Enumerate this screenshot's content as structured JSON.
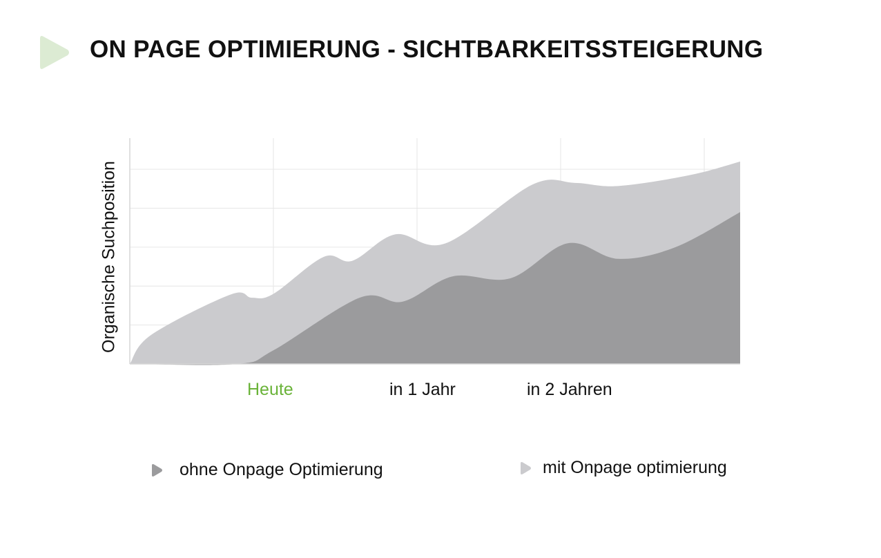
{
  "title": "ON PAGE OPTIMIERUNG - SICHTBARKEITSSTEIGERUNG",
  "colors": {
    "accent_green": "#dcebd3",
    "today_green": "#6ab339",
    "series_mit": "#cbcbce",
    "series_ohne": "#9b9b9d",
    "grid": "#e6e6e6"
  },
  "chart_data": {
    "type": "area",
    "title": "ON PAGE OPTIMIERUNG - SICHTBARKEITSSTEIGERUNG",
    "xlabel": "",
    "ylabel": "Organische Suchposition",
    "categories": [
      "Heute",
      "in 1 Jahr",
      "in 2 Jahren"
    ],
    "highlight_category": "Heute",
    "x": [
      0,
      0.5,
      1,
      1.5,
      2,
      2.5,
      3,
      3.5,
      4,
      4.25
    ],
    "xlim": [
      0,
      4.25
    ],
    "ylim": [
      0,
      5.8
    ],
    "grid": true,
    "legend_position": "bottom",
    "series": [
      {
        "name": "mit Onpage optimierung",
        "color": "#cbcbce",
        "x": [
          0,
          0.15,
          0.7,
          0.85,
          1,
          1.35,
          1.55,
          1.85,
          2.2,
          2.8,
          3.1,
          3.4,
          3.9,
          4.25
        ],
        "values": [
          0,
          0.75,
          1.78,
          1.7,
          1.8,
          2.75,
          2.65,
          3.33,
          3.1,
          4.6,
          4.65,
          4.57,
          4.85,
          5.2
        ]
      },
      {
        "name": "ohne Onpage Optimierung",
        "color": "#9b9b9d",
        "x": [
          0,
          0.75,
          1,
          1.6,
          1.9,
          2.25,
          2.65,
          3.05,
          3.4,
          3.8,
          4.25
        ],
        "values": [
          0,
          0,
          0.35,
          1.7,
          1.6,
          2.25,
          2.2,
          3.1,
          2.7,
          3.0,
          3.9
        ]
      }
    ]
  }
}
